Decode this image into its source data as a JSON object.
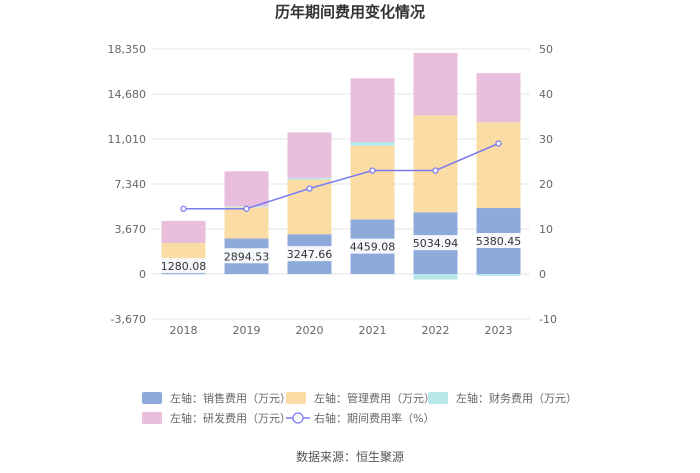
{
  "chart_data": {
    "type": "bar",
    "title": "历年期间费用变化情况",
    "categories": [
      "2018",
      "2019",
      "2020",
      "2021",
      "2022",
      "2023"
    ],
    "left_axis": {
      "ylim": [
        -3670,
        18350
      ],
      "ticks": [
        "18,350",
        "14,680",
        "11,010",
        "7,340",
        "3,670",
        "0",
        "-3,670"
      ],
      "tick_values": [
        18350,
        14680,
        11010,
        7340,
        3670,
        0,
        -3670
      ]
    },
    "right_axis": {
      "ylim": [
        -10,
        50
      ],
      "ticks": [
        "50",
        "40",
        "30",
        "20",
        "10",
        "0",
        "-10"
      ],
      "tick_values": [
        50,
        40,
        30,
        20,
        10,
        0,
        -10
      ]
    },
    "series": [
      {
        "name": "左轴：销售费用（万元）",
        "axis": "left",
        "kind": "stacked-bar",
        "color": "#8eaadb",
        "values": [
          1280.08,
          2894.53,
          3247.66,
          4459.08,
          5034.94,
          5380.45
        ],
        "labels": [
          "1280.08",
          "2894.53",
          "3247.66",
          "4459.08",
          "5034.94",
          "5380.45"
        ]
      },
      {
        "name": "左轴：管理费用（万元）",
        "axis": "left",
        "kind": "stacked-bar",
        "color": "#fcdca5",
        "values": [
          1250,
          2550,
          4450,
          6000,
          7900,
          7000
        ]
      },
      {
        "name": "左轴：财务费用（万元）",
        "axis": "left",
        "kind": "stacked-bar",
        "color": "#b8e7ea",
        "values": [
          -50,
          80,
          150,
          300,
          -450,
          -150
        ]
      },
      {
        "name": "左轴：研发费用（万元）",
        "axis": "left",
        "kind": "stacked-bar",
        "color": "#e8bedc",
        "values": [
          1800,
          2850,
          3700,
          5200,
          5100,
          4000
        ]
      },
      {
        "name": "右轴：期间费用率（%）",
        "axis": "right",
        "kind": "line",
        "color": "#7b7cf0",
        "values": [
          14.5,
          14.5,
          19,
          23,
          23,
          29
        ]
      }
    ],
    "source": "数据来源：恒生聚源"
  }
}
